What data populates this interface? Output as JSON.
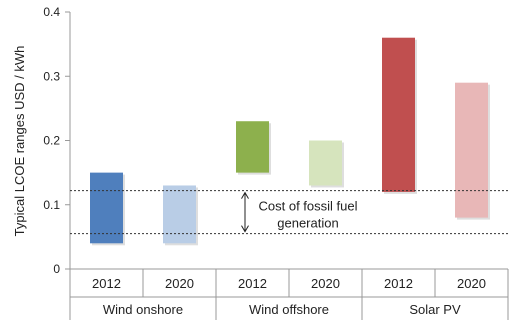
{
  "chart_data": {
    "type": "bar",
    "subtype": "floating-range",
    "ylabel": "Typical LCOE ranges USD / kWh",
    "ylim": [
      0,
      0.4
    ],
    "yticks": [
      "0",
      "0.1",
      "0.2",
      "0.3",
      "0.4"
    ],
    "ytick_values": [
      0,
      0.1,
      0.2,
      0.3,
      0.4
    ],
    "groups": [
      "Wind onshore",
      "Wind offshore",
      "Solar PV"
    ],
    "categories": [
      "2012",
      "2020",
      "2012",
      "2020",
      "2012",
      "2020"
    ],
    "ranges": [
      {
        "group": "Wind onshore",
        "year": "2012",
        "low": 0.04,
        "high": 0.15,
        "color": "#4f7fbd"
      },
      {
        "group": "Wind onshore",
        "year": "2020",
        "low": 0.04,
        "high": 0.13,
        "color": "#b9cde6"
      },
      {
        "group": "Wind offshore",
        "year": "2012",
        "low": 0.15,
        "high": 0.23,
        "color": "#8db04d"
      },
      {
        "group": "Wind offshore",
        "year": "2020",
        "low": 0.13,
        "high": 0.2,
        "color": "#d6e4bd"
      },
      {
        "group": "Solar PV",
        "year": "2012",
        "low": 0.12,
        "high": 0.36,
        "color": "#c04f4f"
      },
      {
        "group": "Solar PV",
        "year": "2020",
        "low": 0.08,
        "high": 0.29,
        "color": "#e8b7b7"
      }
    ],
    "reference_band": {
      "low": 0.055,
      "high": 0.122,
      "label_lines": [
        "Cost of fossil fuel",
        "generation"
      ]
    },
    "grid": false,
    "legend": "none"
  }
}
